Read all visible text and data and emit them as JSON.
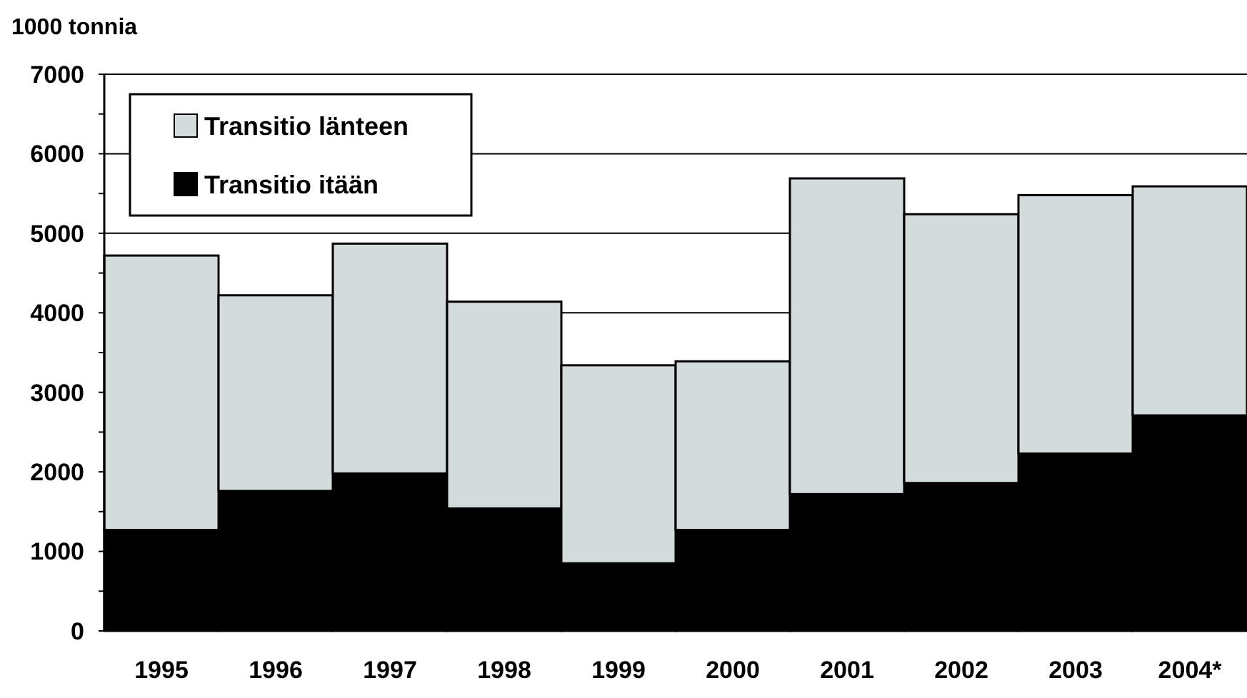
{
  "chart_data": {
    "type": "bar",
    "stacked": true,
    "ylabel": "1000 tonnia",
    "categories": [
      "1995",
      "1996",
      "1997",
      "1998",
      "1999",
      "2000",
      "2001",
      "2002",
      "2003",
      "2004*"
    ],
    "series": [
      {
        "name": "Transitio itään",
        "color": "#000000",
        "values": [
          1270,
          1760,
          1980,
          1540,
          850,
          1270,
          1720,
          1860,
          2230,
          2710
        ]
      },
      {
        "name": "Transitio länteen",
        "color": "#d3dbdc",
        "values": [
          3450,
          2460,
          2890,
          2600,
          2490,
          2120,
          3970,
          3380,
          3250,
          2880
        ]
      }
    ],
    "ylim": [
      0,
      7000
    ],
    "yticks": [
      0,
      {
        "value": 500,
        "label": null
      },
      1000,
      {
        "value": 1500,
        "label": null
      },
      2000,
      {
        "value": 2500,
        "label": null
      },
      3000,
      {
        "value": 3500,
        "label": null
      },
      4000,
      {
        "value": 4500,
        "label": null
      },
      5000,
      {
        "value": 5500,
        "label": null
      },
      6000,
      {
        "value": 6500,
        "label": null
      },
      7000
    ],
    "grid": "y",
    "legend": "top left"
  }
}
